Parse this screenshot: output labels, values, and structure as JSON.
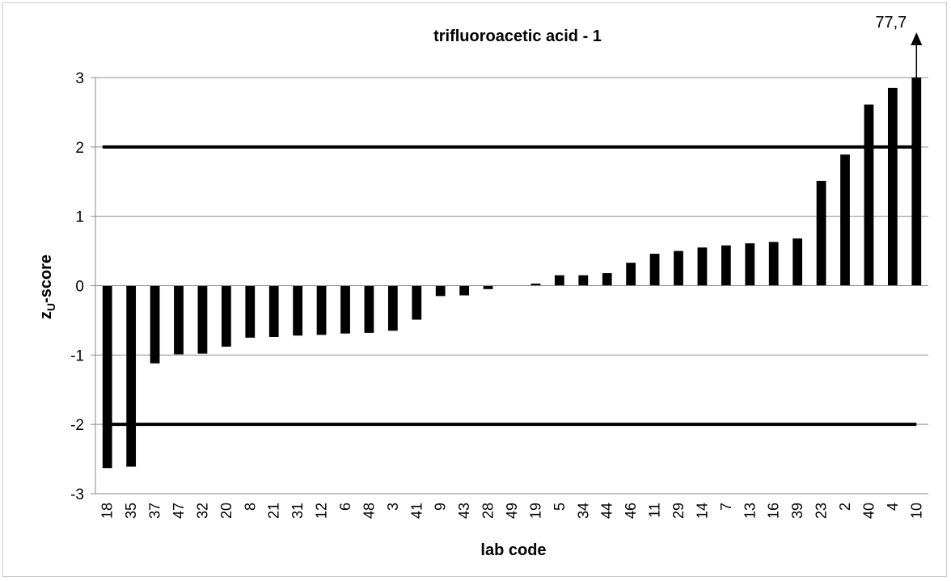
{
  "chart_data": {
    "type": "bar",
    "title": "trifluoroacetic acid - 1",
    "xlabel": "lab code",
    "ylabel_main": "z",
    "ylabel_sub": "U",
    "ylabel_tail": "-score",
    "ylim": [
      -3,
      3
    ],
    "yticks": [
      3,
      2,
      1,
      0,
      -1,
      -2,
      -3
    ],
    "grid": true,
    "reference_lines": [
      2,
      -2
    ],
    "categories": [
      "18",
      "35",
      "37",
      "47",
      "32",
      "20",
      "8",
      "21",
      "31",
      "12",
      "6",
      "48",
      "3",
      "41",
      "9",
      "43",
      "28",
      "49",
      "19",
      "5",
      "34",
      "44",
      "46",
      "11",
      "29",
      "14",
      "7",
      "13",
      "16",
      "39",
      "23",
      "2",
      "40",
      "4",
      "10"
    ],
    "values": [
      -2.63,
      -2.61,
      -1.12,
      -0.99,
      -0.98,
      -0.88,
      -0.75,
      -0.74,
      -0.72,
      -0.71,
      -0.69,
      -0.68,
      -0.65,
      -0.49,
      -0.15,
      -0.14,
      -0.05,
      0.0,
      0.03,
      0.15,
      0.15,
      0.18,
      0.33,
      0.46,
      0.5,
      0.55,
      0.58,
      0.61,
      0.63,
      0.68,
      1.51,
      1.89,
      2.61,
      2.85,
      3.0
    ],
    "annotation": {
      "text": "77,7",
      "category": "10",
      "actual_value": 77.7
    }
  }
}
